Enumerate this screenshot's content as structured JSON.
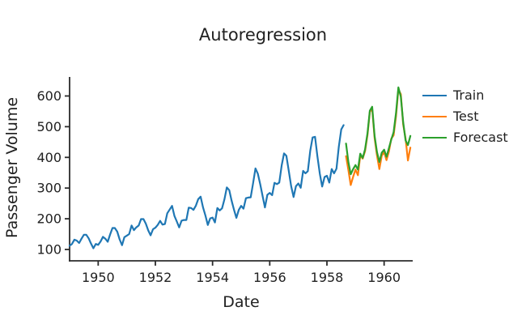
{
  "figure": {
    "background": "#ffffff",
    "text_color": "#212121",
    "axis_color": "#2b2b2b"
  },
  "chart_data": {
    "type": "line",
    "title": "Autoregression",
    "xlabel": "Date",
    "ylabel": "Passenger Volume",
    "x_ticks": [
      1950,
      1952,
      1954,
      1956,
      1958,
      1960
    ],
    "y_ticks": [
      100,
      200,
      300,
      400,
      500,
      600
    ],
    "xlim": [
      1949.0,
      1961.0
    ],
    "ylim": [
      63,
      662
    ],
    "grid": false,
    "spines": [
      "left",
      "bottom"
    ],
    "legend_position": "upper-right-outside",
    "series": [
      {
        "name": "Train",
        "color": "#1f77b4",
        "start_year": 1949.0,
        "interval_years": 0.0833333,
        "values": [
          112,
          118,
          132,
          129,
          121,
          135,
          148,
          148,
          136,
          119,
          104,
          118,
          115,
          126,
          141,
          135,
          125,
          149,
          170,
          170,
          158,
          133,
          114,
          140,
          145,
          150,
          178,
          163,
          172,
          178,
          199,
          199,
          184,
          162,
          146,
          166,
          171,
          180,
          193,
          181,
          183,
          218,
          230,
          242,
          209,
          191,
          172,
          194,
          196,
          196,
          236,
          235,
          229,
          243,
          264,
          272,
          237,
          211,
          180,
          201,
          204,
          188,
          235,
          227,
          234,
          264,
          302,
          293,
          259,
          229,
          203,
          229,
          242,
          233,
          267,
          269,
          270,
          315,
          364,
          347,
          312,
          274,
          237,
          278,
          284,
          277,
          317,
          313,
          318,
          374,
          413,
          405,
          355,
          306,
          271,
          306,
          315,
          301,
          356,
          348,
          355,
          422,
          465,
          467,
          404,
          347,
          305,
          336,
          340,
          318,
          362,
          348,
          363,
          435,
          491,
          505
        ]
      },
      {
        "name": "Test",
        "color": "#ff7f0e",
        "start_year": 1958.6667,
        "interval_years": 0.0833333,
        "values": [
          404,
          359,
          310,
          337,
          360,
          342,
          406,
          396,
          420,
          472,
          548,
          559,
          463,
          407,
          362,
          405,
          417,
          391,
          419,
          461,
          472,
          535,
          622,
          606,
          508,
          461,
          390,
          432
        ]
      },
      {
        "name": "Forecast",
        "color": "#2ca02c",
        "start_year": 1958.6667,
        "interval_years": 0.0833333,
        "values": [
          445,
          385,
          345,
          362,
          375,
          360,
          412,
          398,
          426,
          478,
          552,
          565,
          470,
          418,
          385,
          415,
          425,
          402,
          430,
          458,
          482,
          545,
          628,
          598,
          515,
          455,
          440,
          470
        ]
      }
    ]
  }
}
